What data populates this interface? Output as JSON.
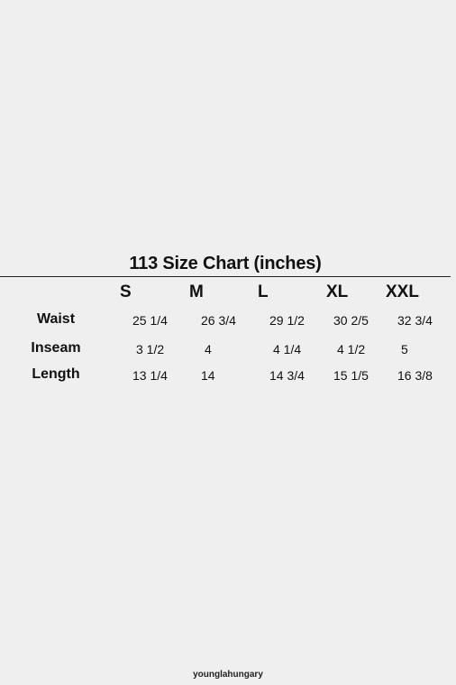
{
  "title": "113 Size Chart (inches)",
  "table": {
    "columns": [
      "S",
      "M",
      "L",
      "XL",
      "XXL"
    ],
    "rows": [
      {
        "label": "Waist",
        "values": [
          "25 1/4",
          "26 3/4",
          "29 1/2",
          "30 2/5",
          "32 3/4"
        ]
      },
      {
        "label": "Inseam",
        "values": [
          "3 1/2",
          "4",
          "4 1/4",
          "4 1/2",
          "5"
        ]
      },
      {
        "label": "Length",
        "values": [
          "13 1/4",
          "14",
          "14 3/4",
          "15 1/5",
          "16 3/8"
        ]
      }
    ]
  },
  "footer": {
    "credit": "younglahungary"
  }
}
